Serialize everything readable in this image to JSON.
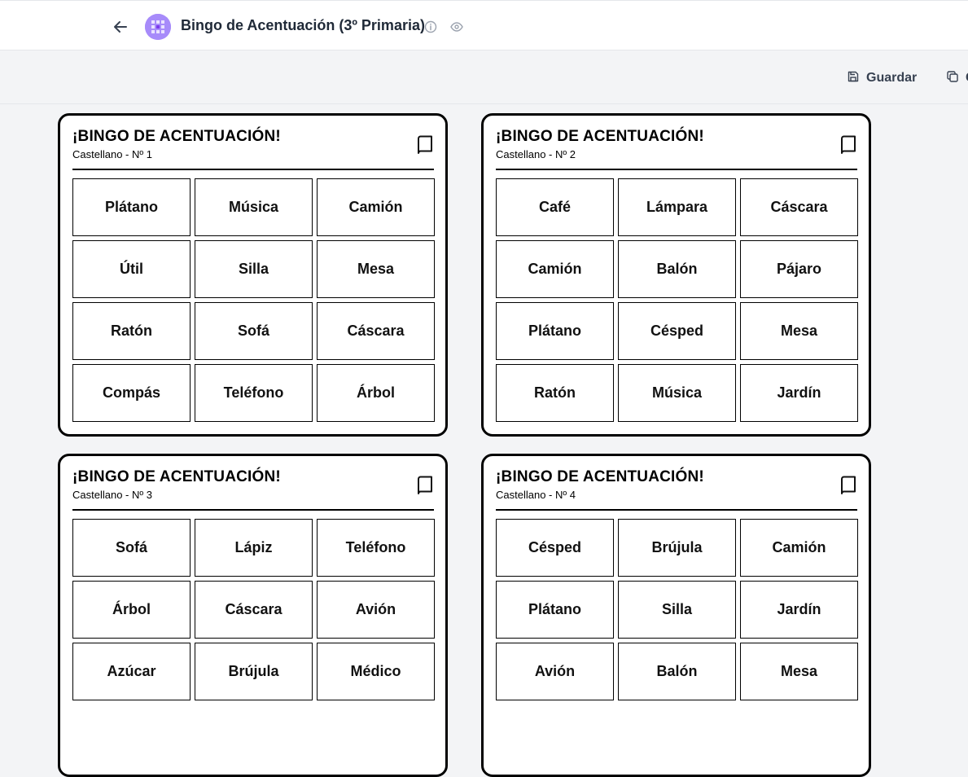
{
  "header": {
    "title": "Bingo de Acentuación (3º Primaria)"
  },
  "toolbar": {
    "save_label": "Guardar",
    "copy_label": "C"
  },
  "cards": [
    {
      "title": "¡BINGO DE ACENTUACIÓN!",
      "subtitle": "Castellano - Nº 1",
      "words": [
        "Plátano",
        "Música",
        "Camión",
        "Útil",
        "Silla",
        "Mesa",
        "Ratón",
        "Sofá",
        "Cáscara",
        "Compás",
        "Teléfono",
        "Árbol"
      ]
    },
    {
      "title": "¡BINGO DE ACENTUACIÓN!",
      "subtitle": "Castellano - Nº 2",
      "words": [
        "Café",
        "Lámpara",
        "Cáscara",
        "Camión",
        "Balón",
        "Pájaro",
        "Plátano",
        "Césped",
        "Mesa",
        "Ratón",
        "Música",
        "Jardín"
      ]
    },
    {
      "title": "¡BINGO DE ACENTUACIÓN!",
      "subtitle": "Castellano - Nº 3",
      "words": [
        "Sofá",
        "Lápiz",
        "Teléfono",
        "Árbol",
        "Cáscara",
        "Avión",
        "Azúcar",
        "Brújula",
        "Médico"
      ]
    },
    {
      "title": "¡BINGO DE ACENTUACIÓN!",
      "subtitle": "Castellano - Nº 4",
      "words": [
        "Césped",
        "Brújula",
        "Camión",
        "Plátano",
        "Silla",
        "Jardín",
        "Avión",
        "Balón",
        "Mesa"
      ]
    }
  ]
}
